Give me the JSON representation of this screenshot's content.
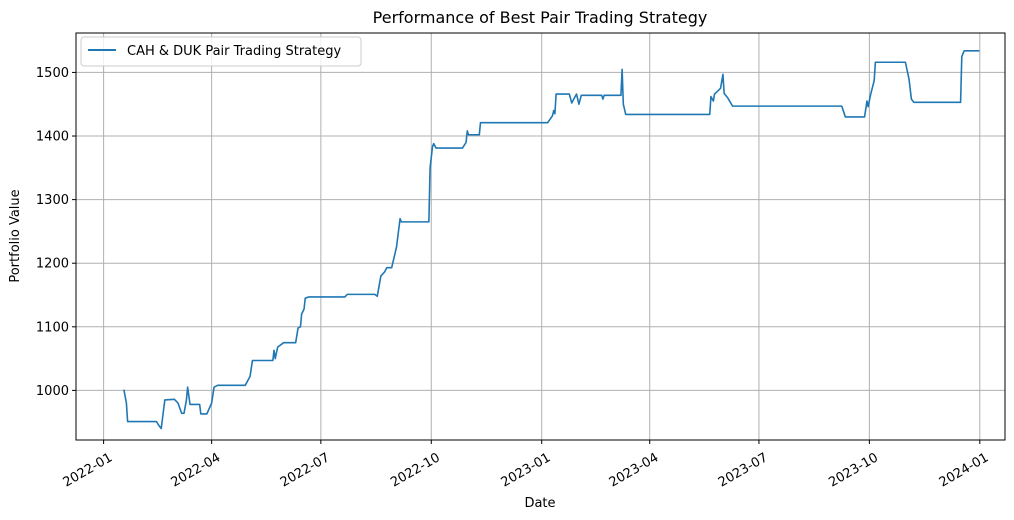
{
  "chart_data": {
    "type": "line",
    "title": "Performance of Best Pair Trading Strategy",
    "xlabel": "Date",
    "ylabel": "Portfolio Value",
    "x_type": "date",
    "xlim": [
      "2021-12-09",
      "2024-01-22"
    ],
    "ylim": [
      922,
      1562
    ],
    "x_ticks": [
      "2022-01",
      "2022-04",
      "2022-07",
      "2022-10",
      "2023-01",
      "2023-04",
      "2023-07",
      "2023-10",
      "2024-01"
    ],
    "y_ticks": [
      1000,
      1100,
      1200,
      1300,
      1400,
      1500
    ],
    "grid": true,
    "legend_position": "top-left",
    "series": [
      {
        "name": "CAH & DUK Pair Trading Strategy",
        "color": "#1f77b4",
        "points": [
          [
            "2022-01-18",
            1000
          ],
          [
            "2022-01-20",
            980
          ],
          [
            "2022-01-21",
            951
          ],
          [
            "2022-02-14",
            951
          ],
          [
            "2022-02-16",
            945
          ],
          [
            "2022-02-18",
            940
          ],
          [
            "2022-02-21",
            985
          ],
          [
            "2022-03-01",
            986
          ],
          [
            "2022-03-04",
            980
          ],
          [
            "2022-03-07",
            964
          ],
          [
            "2022-03-09",
            964
          ],
          [
            "2022-03-11",
            985
          ],
          [
            "2022-03-12",
            1005
          ],
          [
            "2022-03-14",
            978
          ],
          [
            "2022-03-22",
            978
          ],
          [
            "2022-03-23",
            963
          ],
          [
            "2022-03-28",
            963
          ],
          [
            "2022-04-01",
            980
          ],
          [
            "2022-04-03",
            1005
          ],
          [
            "2022-04-06",
            1008
          ],
          [
            "2022-04-29",
            1008
          ],
          [
            "2022-05-03",
            1022
          ],
          [
            "2022-05-05",
            1047
          ],
          [
            "2022-05-22",
            1047
          ],
          [
            "2022-05-23",
            1063
          ],
          [
            "2022-05-24",
            1050
          ],
          [
            "2022-05-26",
            1068
          ],
          [
            "2022-05-31",
            1075
          ],
          [
            "2022-06-10",
            1075
          ],
          [
            "2022-06-12",
            1098
          ],
          [
            "2022-06-14",
            1100
          ],
          [
            "2022-06-15",
            1120
          ],
          [
            "2022-06-17",
            1128
          ],
          [
            "2022-06-18",
            1145
          ],
          [
            "2022-06-21",
            1147
          ],
          [
            "2022-07-21",
            1147
          ],
          [
            "2022-07-23",
            1151
          ],
          [
            "2022-08-15",
            1151
          ],
          [
            "2022-08-17",
            1148
          ],
          [
            "2022-08-20",
            1180
          ],
          [
            "2022-08-23",
            1186
          ],
          [
            "2022-08-25",
            1193
          ],
          [
            "2022-08-29",
            1193
          ],
          [
            "2022-09-02",
            1225
          ],
          [
            "2022-09-05",
            1270
          ],
          [
            "2022-09-06",
            1265
          ],
          [
            "2022-09-29",
            1265
          ],
          [
            "2022-09-30",
            1350
          ],
          [
            "2022-10-02",
            1383
          ],
          [
            "2022-10-03",
            1388
          ],
          [
            "2022-10-05",
            1381
          ],
          [
            "2022-10-27",
            1381
          ],
          [
            "2022-10-30",
            1390
          ],
          [
            "2022-10-31",
            1408
          ],
          [
            "2022-11-01",
            1402
          ],
          [
            "2022-11-10",
            1402
          ],
          [
            "2022-11-11",
            1421
          ],
          [
            "2023-01-06",
            1421
          ],
          [
            "2023-01-10",
            1432
          ],
          [
            "2023-01-11",
            1440
          ],
          [
            "2023-01-12",
            1435
          ],
          [
            "2023-01-13",
            1466
          ],
          [
            "2023-01-24",
            1466
          ],
          [
            "2023-01-26",
            1452
          ],
          [
            "2023-01-30",
            1466
          ],
          [
            "2023-02-01",
            1450
          ],
          [
            "2023-02-03",
            1464
          ],
          [
            "2023-02-20",
            1464
          ],
          [
            "2023-02-21",
            1458
          ],
          [
            "2023-02-22",
            1464
          ],
          [
            "2023-03-08",
            1464
          ],
          [
            "2023-03-09",
            1505
          ],
          [
            "2023-03-10",
            1450
          ],
          [
            "2023-03-12",
            1434
          ],
          [
            "2023-05-21",
            1434
          ],
          [
            "2023-05-22",
            1462
          ],
          [
            "2023-05-24",
            1455
          ],
          [
            "2023-05-25",
            1466
          ],
          [
            "2023-05-30",
            1475
          ],
          [
            "2023-06-01",
            1497
          ],
          [
            "2023-06-02",
            1467
          ],
          [
            "2023-06-05",
            1460
          ],
          [
            "2023-06-09",
            1447
          ],
          [
            "2023-09-08",
            1447
          ],
          [
            "2023-09-11",
            1430
          ],
          [
            "2023-09-27",
            1430
          ],
          [
            "2023-09-29",
            1455
          ],
          [
            "2023-09-30",
            1446
          ],
          [
            "2023-10-02",
            1465
          ],
          [
            "2023-10-05",
            1487
          ],
          [
            "2023-10-06",
            1516
          ],
          [
            "2023-10-31",
            1516
          ],
          [
            "2023-11-03",
            1490
          ],
          [
            "2023-11-05",
            1458
          ],
          [
            "2023-11-07",
            1453
          ],
          [
            "2023-12-16",
            1453
          ],
          [
            "2023-12-17",
            1525
          ],
          [
            "2023-12-19",
            1534
          ],
          [
            "2023-12-31",
            1534
          ]
        ]
      }
    ]
  }
}
